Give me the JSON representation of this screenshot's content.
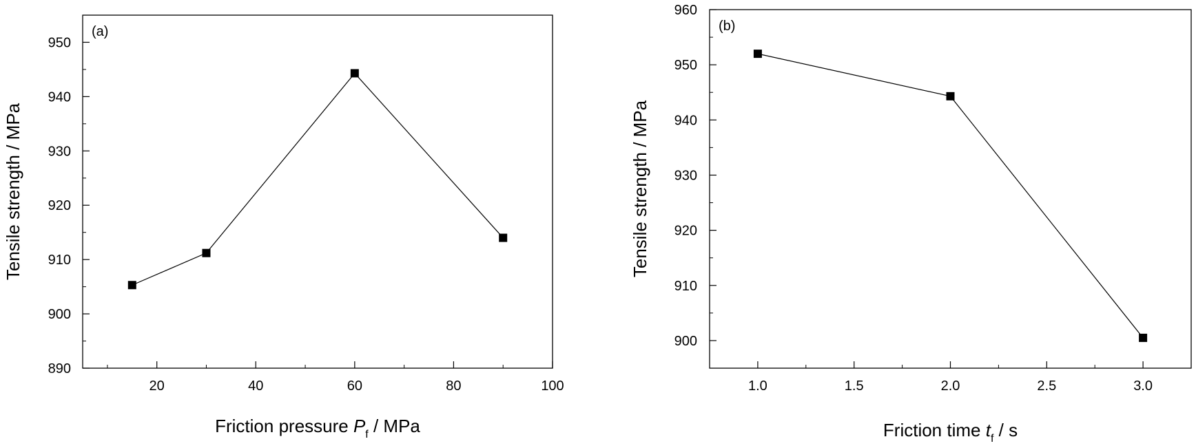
{
  "chart_data": [
    {
      "type": "line",
      "panel_label": "(a)",
      "xlabel": "Friction pressure",
      "xlabel_var": "P",
      "xlabel_sub": "f",
      "xlabel_unit": " / MPa",
      "ylabel": "Tensile strength / MPa",
      "xlim": [
        5,
        100
      ],
      "ylim": [
        890,
        955
      ],
      "xticks": [
        20,
        40,
        60,
        80,
        100
      ],
      "xtick_labels": [
        "20",
        "40",
        "60",
        "80",
        "100"
      ],
      "xminor": [
        10,
        30,
        50,
        70,
        90
      ],
      "yticks": [
        890,
        900,
        910,
        920,
        930,
        940,
        950
      ],
      "ytick_labels": [
        "890",
        "900",
        "910",
        "920",
        "930",
        "940",
        "950"
      ],
      "yminor": [
        895,
        905,
        915,
        925,
        935,
        945
      ],
      "grid": false,
      "series": [
        {
          "marker": "square",
          "color": "#000000",
          "x": [
            15,
            30,
            60,
            90
          ],
          "y": [
            905.3,
            911.2,
            944.3,
            914.0
          ]
        }
      ]
    },
    {
      "type": "line",
      "panel_label": "(b)",
      "xlabel": "Friction time",
      "xlabel_var": "t",
      "xlabel_sub": "f",
      "xlabel_unit": " / s",
      "ylabel": "Tensile strength / MPa",
      "xlim": [
        0.75,
        3.25
      ],
      "ylim": [
        895,
        960
      ],
      "xticks": [
        1.0,
        1.5,
        2.0,
        2.5,
        3.0
      ],
      "xtick_labels": [
        "1.0",
        "1.5",
        "2.0",
        "2.5",
        "3.0"
      ],
      "xminor": [
        1.25,
        1.75,
        2.25,
        2.75
      ],
      "yticks": [
        900,
        910,
        920,
        930,
        940,
        950,
        960
      ],
      "ytick_labels": [
        "900",
        "910",
        "920",
        "930",
        "940",
        "950",
        "960"
      ],
      "yminor": [
        905,
        915,
        925,
        935,
        945,
        955
      ],
      "grid": false,
      "series": [
        {
          "marker": "square",
          "color": "#000000",
          "x": [
            1.0,
            2.0,
            3.0
          ],
          "y": [
            952.0,
            944.3,
            900.5
          ]
        }
      ]
    }
  ]
}
